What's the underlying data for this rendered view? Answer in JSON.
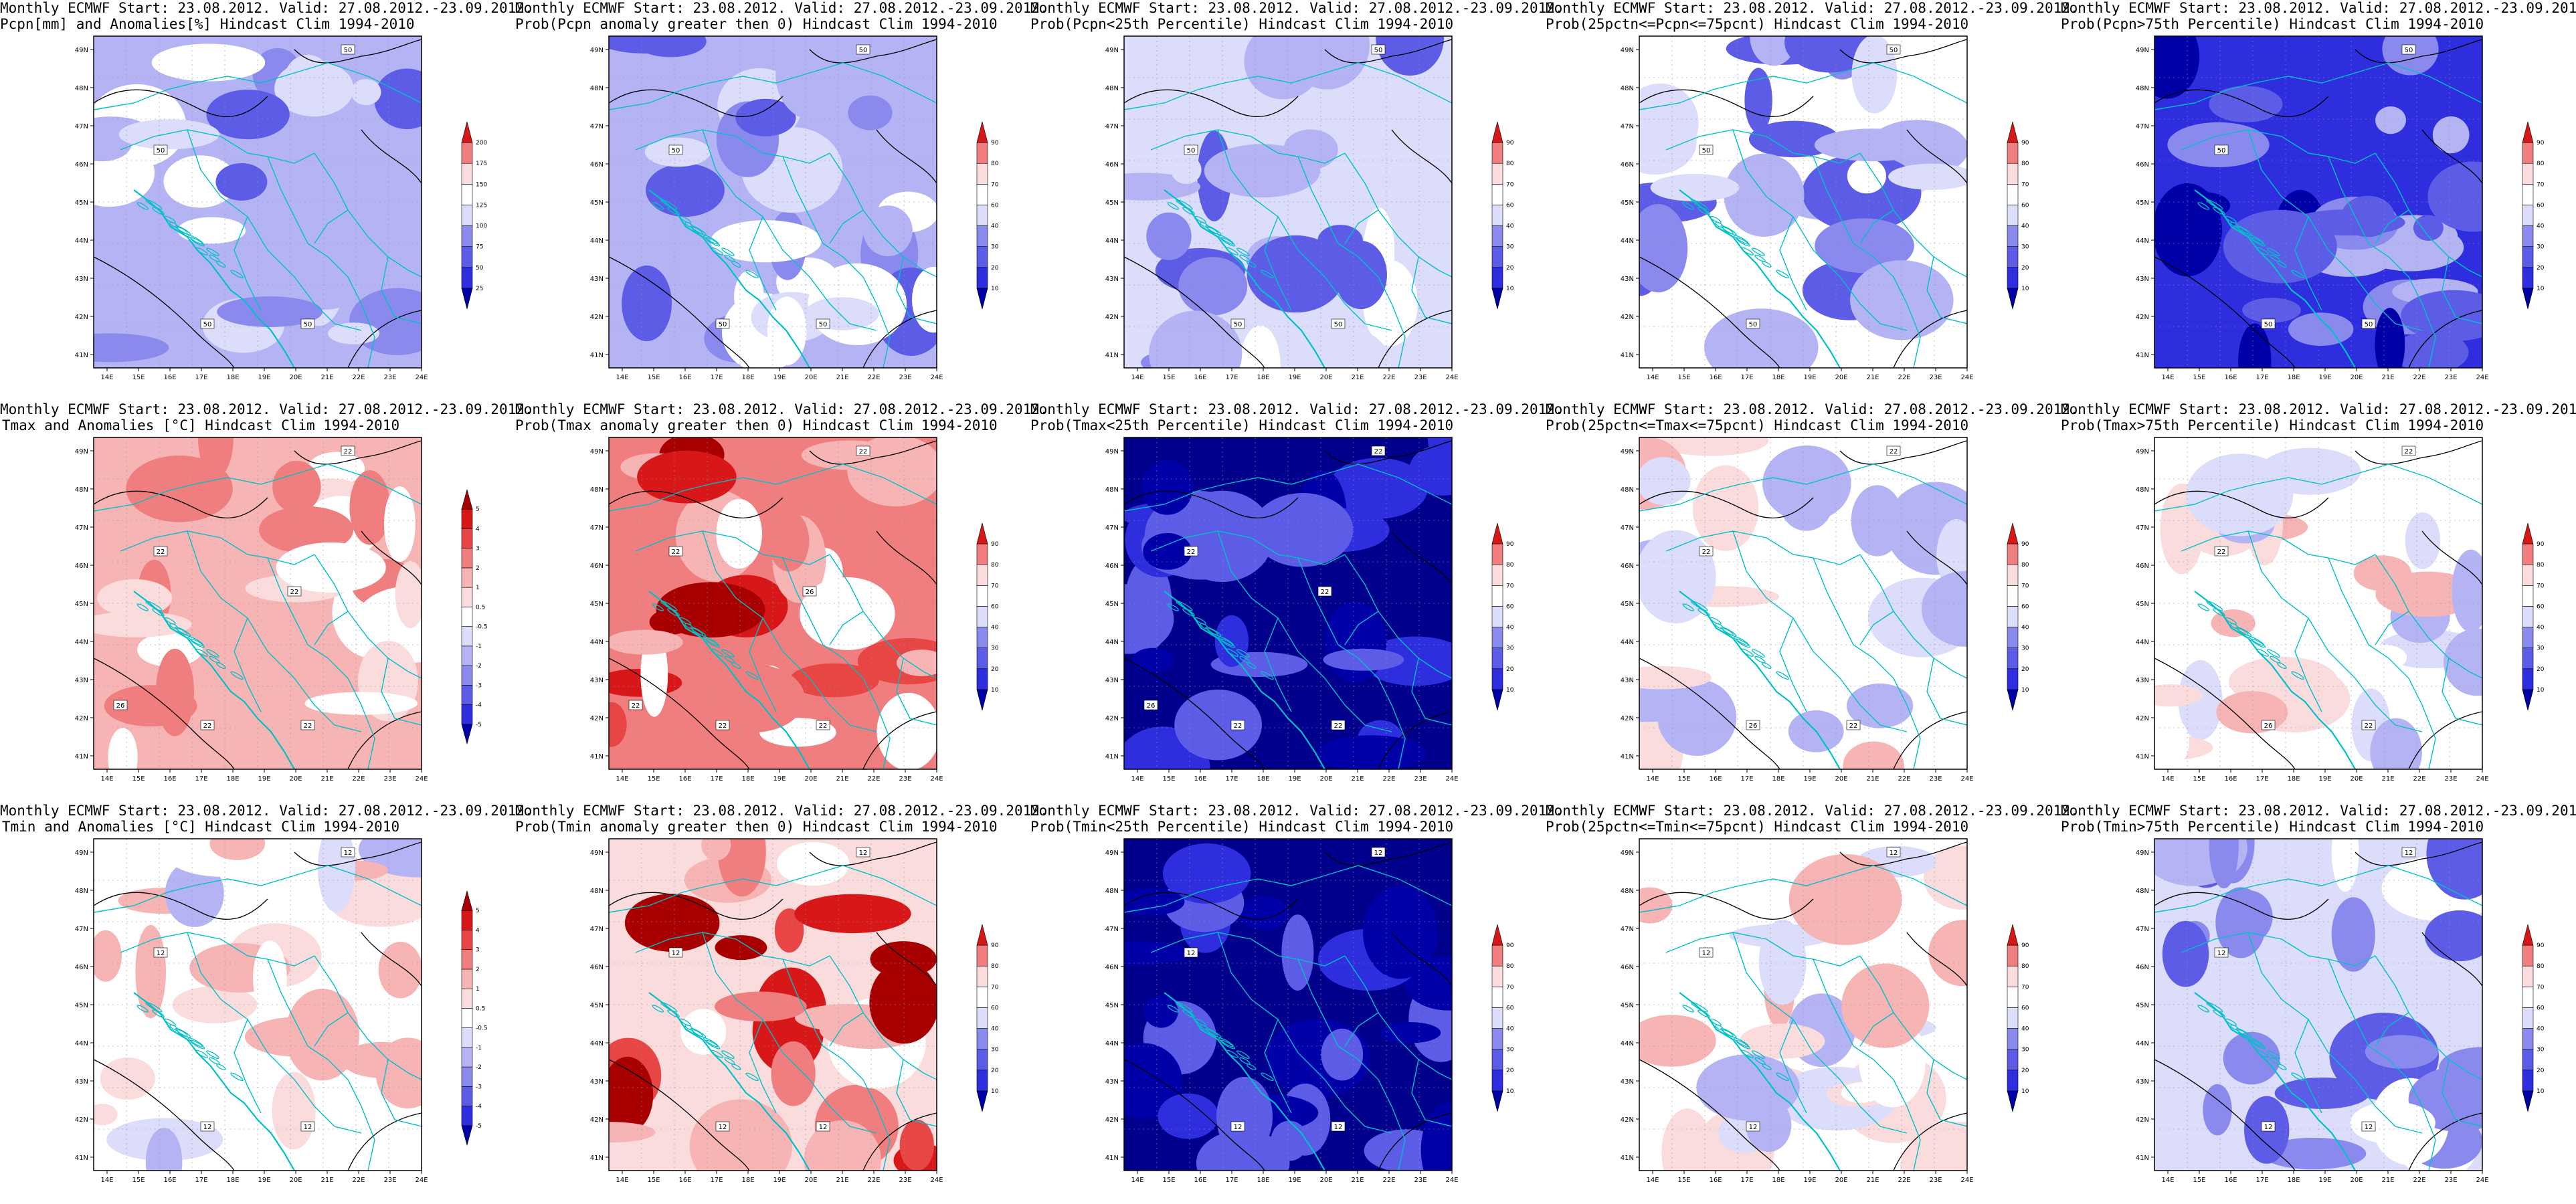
{
  "colors": {
    "red_scale": [
      "#fbdcdc",
      "#f7b4b4",
      "#f07e7e",
      "#e84545",
      "#d81818",
      "#a80000"
    ],
    "blue_scale": [
      "#dcdcfb",
      "#b4b4f5",
      "#8a8aee",
      "#5c5ce6",
      "#2e2edf",
      "#0000a8"
    ],
    "coast": "#00c0c8",
    "contour": "#000000",
    "dark_blue": "#00008c"
  },
  "axes": {
    "lat_labels": [
      "41N",
      "42N",
      "43N",
      "44N",
      "45N",
      "46N",
      "47N",
      "48N",
      "49N"
    ],
    "lon_labels": [
      "14E",
      "15E",
      "16E",
      "17E",
      "18E",
      "19E",
      "20E",
      "21E",
      "22E",
      "23E",
      "24E"
    ]
  },
  "scales": {
    "anom_pcpn": [
      "25",
      "50",
      "75",
      "100",
      "125",
      "150",
      "175",
      "200"
    ],
    "prob": [
      "10",
      "20",
      "30",
      "40",
      "60",
      "70",
      "80",
      "90"
    ],
    "anom_temp": [
      "-5",
      "-4",
      "-3",
      "-2",
      "-1",
      "-0.5",
      "0.5",
      "1",
      "2",
      "3",
      "4",
      "5"
    ]
  },
  "panels": [
    {
      "id": "pcpn-anom",
      "line1": "Monthly ECMWF Start: 23.08.2012. Valid: 27.08.2012.-23.09.2012.",
      "line2": "Pcpn[mm] and Anomalies[%] Hindcast Clim 1994-2010",
      "base": "#b4b4f5",
      "scale": "anom_pcpn",
      "contour_labels": [
        "50",
        "50",
        "50",
        "50"
      ]
    },
    {
      "id": "pcpn-prob-pos",
      "line1": "Monthly ECMWF Start: 23.08.2012. Valid: 27.08.2012.-23.09.2012.",
      "line2": "Prob(Pcpn anomaly greater then 0) Hindcast Clim 1994-2010",
      "base": "#b4b4f5",
      "scale": "prob",
      "contour_labels": [
        "50",
        "50",
        "50",
        "50"
      ]
    },
    {
      "id": "pcpn-prob-lt25",
      "line1": "Monthly ECMWF Start: 23.08.2012. Valid: 27.08.2012.-23.09.2012.",
      "line2": "Prob(Pcpn<25th Percentile) Hindcast Clim 1994-2010",
      "base": "#dcdcfb",
      "scale": "prob",
      "contour_labels": [
        "50",
        "50",
        "50",
        "50"
      ]
    },
    {
      "id": "pcpn-prob-mid",
      "line1": "Monthly ECMWF Start: 23.08.2012. Valid: 27.08.2012.-23.09.2012.",
      "line2": "Prob(25pctn<=Pcpn<=75pcnt) Hindcast Clim 1994-2010",
      "base": "#ffffff",
      "scale": "prob",
      "contour_labels": [
        "50",
        "50",
        "50"
      ]
    },
    {
      "id": "pcpn-prob-gt75",
      "line1": "Monthly ECMWF Start: 23.08.2012. Valid: 27.08.2012.-23.09.2012.",
      "line2": "Prob(Pcpn>75th Percentile) Hindcast Clim 1994-2010",
      "base": "#2e2edf",
      "scale": "prob",
      "contour_labels": [
        "50",
        "50",
        "50",
        "50"
      ]
    },
    {
      "id": "tmax-anom",
      "line1": "Monthly ECMWF Start: 23.08.2012. Valid: 27.08.2012.-23.09.2012.",
      "line2": "Tmax and Anomalies [°C] Hindcast Clim 1994-2010",
      "base": "#f7b4b4",
      "scale": "anom_temp",
      "contour_labels": [
        "22",
        "22",
        "22",
        "22",
        "26",
        "22"
      ]
    },
    {
      "id": "tmax-prob-pos",
      "line1": "Monthly ECMWF Start: 23.08.2012. Valid: 27.08.2012.-23.09.2012.",
      "line2": "Prob(Tmax anomaly greater then 0) Hindcast Clim 1994-2010",
      "base": "#f07e7e",
      "scale": "prob",
      "contour_labels": [
        "22",
        "22",
        "22",
        "22",
        "22",
        "26"
      ]
    },
    {
      "id": "tmax-prob-lt25",
      "line1": "Monthly ECMWF Start: 23.08.2012. Valid: 27.08.2012.-23.09.2012.",
      "line2": "Prob(Tmax<25th Percentile) Hindcast Clim 1994-2010",
      "base": "#00008c",
      "scale": "prob",
      "contour_labels": [
        "22",
        "22",
        "22",
        "22",
        "26",
        "22"
      ]
    },
    {
      "id": "tmax-prob-mid",
      "line1": "Monthly ECMWF Start: 23.08.2012. Valid: 27.08.2012.-23.09.2012.",
      "line2": "Prob(25pctn<=Tmax<=75pcnt) Hindcast Clim 1994-2010",
      "base": "#ffffff",
      "scale": "prob",
      "contour_labels": [
        "22",
        "22",
        "26",
        "22"
      ]
    },
    {
      "id": "tmax-prob-gt75",
      "line1": "Monthly ECMWF Start: 23.08.2012. Valid: 27.08.2012.-23.09.2012.",
      "line2": "Prob(Tmax>75th Percentile) Hindcast Clim 1994-2010",
      "base": "#ffffff",
      "scale": "prob",
      "contour_labels": [
        "22",
        "22",
        "26",
        "22"
      ]
    },
    {
      "id": "tmin-anom",
      "line1": "Monthly ECMWF Start: 23.08.2012. Valid: 27.08.2012.-23.09.2012.",
      "line2": "Tmin and Anomalies [°C] Hindcast Clim 1994-2010",
      "base": "#ffffff",
      "scale": "anom_temp",
      "contour_labels": [
        "12",
        "12",
        "12",
        "12"
      ]
    },
    {
      "id": "tmin-prob-pos",
      "line1": "Monthly ECMWF Start: 23.08.2012. Valid: 27.08.2012.-23.09.2012.",
      "line2": "Prob(Tmin anomaly greater then 0) Hindcast Clim 1994-2010",
      "base": "#fbdcdc",
      "scale": "prob",
      "contour_labels": [
        "12",
        "12",
        "12",
        "12"
      ]
    },
    {
      "id": "tmin-prob-lt25",
      "line1": "Monthly ECMWF Start: 23.08.2012. Valid: 27.08.2012.-23.09.2012.",
      "line2": "Prob(Tmin<25th Percentile) Hindcast Clim 1994-2010",
      "base": "#00008c",
      "scale": "prob",
      "contour_labels": [
        "12",
        "12",
        "12",
        "12"
      ]
    },
    {
      "id": "tmin-prob-mid",
      "line1": "Monthly ECMWF Start: 23.08.2012. Valid: 27.08.2012.-23.09.2012.",
      "line2": "Prob(25pctn<=Tmin<=75pcnt) Hindcast Clim 1994-2010",
      "base": "#ffffff",
      "scale": "prob",
      "contour_labels": [
        "12",
        "12",
        "12"
      ]
    },
    {
      "id": "tmin-prob-gt75",
      "line1": "Monthly ECMWF Start: 23.08.2012. Valid: 27.08.2012.-23.09.2012.",
      "line2": "Prob(Tmin>75th Percentile) Hindcast Clim 1994-2010",
      "base": "#dcdcfb",
      "scale": "prob",
      "contour_labels": [
        "12",
        "12",
        "12",
        "12"
      ]
    }
  ]
}
